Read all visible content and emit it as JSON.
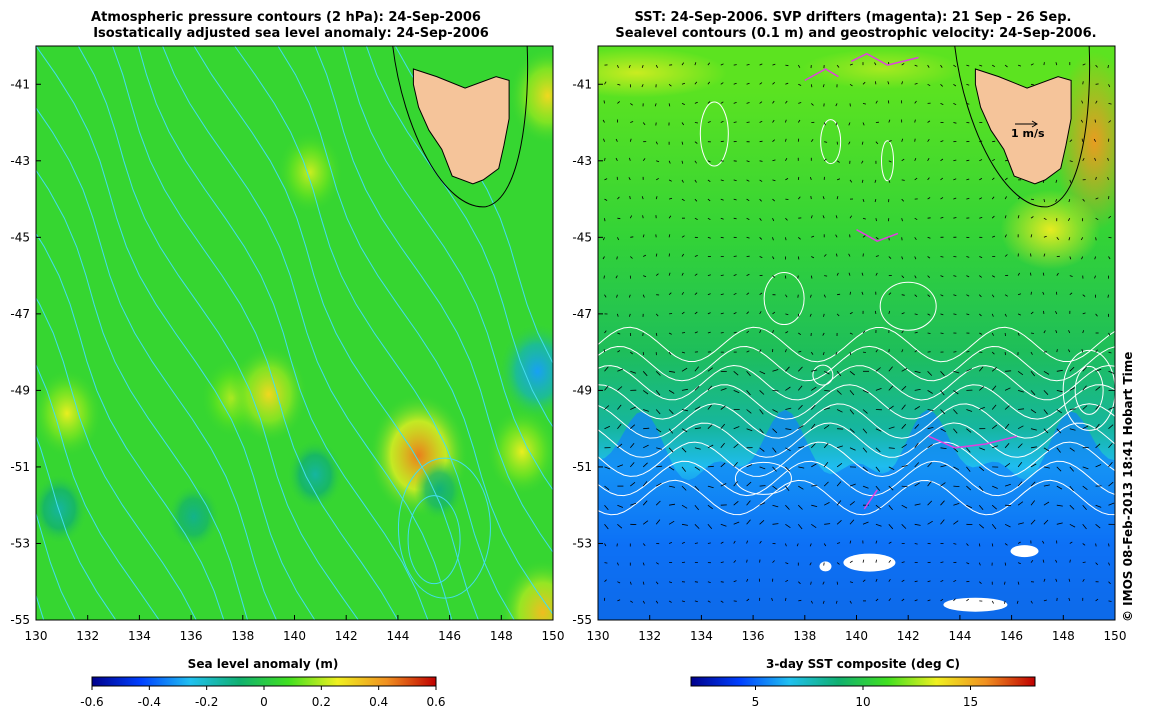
{
  "left_panel": {
    "title_line1": "Atmospheric pressure contours (2 hPa): 24-Sep-2006",
    "title_line2": "Isostatically adjusted sea level anomaly: 24-Sep-2006",
    "colorbar_label": "Sea level anomaly (m)",
    "colorbar_ticks": [
      "-0.6",
      "-0.4",
      "-0.2",
      "0",
      "0.2",
      "0.4",
      "0.6"
    ]
  },
  "right_panel": {
    "title_line1": "SST: 24-Sep-2006. SVP drifters (magenta): 21 Sep - 26 Sep.",
    "title_line2": "Sealevel contours (0.1 m) and geostrophic velocity: 24-Sep-2006.",
    "velocity_scale_label": "1 m/s",
    "colorbar_label": "3-day SST composite (deg C)",
    "colorbar_ticks": [
      "5",
      "10",
      "15"
    ]
  },
  "credit": "© IMOS 08-Feb-2013 18:41 Hobart Time",
  "chart_data": [
    {
      "type": "heatmap",
      "title": "Atmospheric pressure contours (2 hPa): 24-Sep-2006 / Isostatically adjusted sea level anomaly: 24-Sep-2006",
      "colorbar_label": "Sea level anomaly (m)",
      "xlim": [
        130,
        150
      ],
      "ylim": [
        -55,
        -40
      ],
      "x_ticks": [
        "130",
        "132",
        "134",
        "136",
        "138",
        "140",
        "142",
        "144",
        "146",
        "148",
        "150"
      ],
      "y_ticks": [
        "-41",
        "-43",
        "-45",
        "-47",
        "-49",
        "-51",
        "-53",
        "-55"
      ],
      "color_range": [
        -0.6,
        0.6
      ],
      "colorbar_colors": [
        "#00008c",
        "#0040ff",
        "#20c0f0",
        "#10b070",
        "#40e020",
        "#f0f020",
        "#f09020",
        "#c00000"
      ],
      "anomalies": [
        {
          "lon": 131.2,
          "lat": -49.6,
          "value": 0.25
        },
        {
          "lon": 130.9,
          "lat": -52.1,
          "value": -0.15
        },
        {
          "lon": 136.1,
          "lat": -52.3,
          "value": -0.12
        },
        {
          "lon": 137.6,
          "lat": -49.2,
          "value": 0.2
        },
        {
          "lon": 139.0,
          "lat": -49.1,
          "value": 0.3
        },
        {
          "lon": 140.6,
          "lat": -43.3,
          "value": 0.22
        },
        {
          "lon": 140.8,
          "lat": -51.2,
          "value": -0.15
        },
        {
          "lon": 144.8,
          "lat": -50.7,
          "value": 0.45
        },
        {
          "lon": 145.6,
          "lat": -51.6,
          "value": -0.1
        },
        {
          "lon": 149.4,
          "lat": -48.5,
          "value": -0.3
        },
        {
          "lon": 149.8,
          "lat": -41.3,
          "value": 0.3
        },
        {
          "lon": 149.6,
          "lat": -54.8,
          "value": 0.35
        },
        {
          "lon": 148.8,
          "lat": -50.6,
          "value": 0.25
        }
      ],
      "colors": {
        "land": "#f5c49a",
        "pressure_contours": "#44ddee"
      }
    },
    {
      "type": "heatmap",
      "title": "SST: 24-Sep-2006. SVP drifters (magenta): 21 Sep - 26 Sep. / Sealevel contours (0.1 m) and geostrophic velocity: 24-Sep-2006.",
      "colorbar_label": "3-day SST composite (deg C)",
      "xlim": [
        130,
        150
      ],
      "ylim": [
        -55,
        -40
      ],
      "x_ticks": [
        "130",
        "132",
        "134",
        "136",
        "138",
        "140",
        "142",
        "144",
        "146",
        "148",
        "150"
      ],
      "y_ticks": [
        "-41",
        "-43",
        "-45",
        "-47",
        "-49",
        "-51",
        "-53",
        "-55"
      ],
      "color_range": [
        2,
        18
      ],
      "colorbar_colors": [
        "#00008c",
        "#0040ff",
        "#20c0f0",
        "#10b070",
        "#40e020",
        "#f0f020",
        "#f09020",
        "#c00000"
      ],
      "sst_bands": [
        {
          "lat": -41,
          "sst": 11.5
        },
        {
          "lat": -45,
          "sst": 10.5
        },
        {
          "lat": -48,
          "sst": 9.5
        },
        {
          "lat": -50,
          "sst": 8
        },
        {
          "lat": -51,
          "sst": 6.5
        },
        {
          "lat": -53,
          "sst": 4
        },
        {
          "lat": -55,
          "sst": 3
        }
      ],
      "velocity_scale": "1 m/s",
      "colors": {
        "land": "#f5c49a",
        "sealevel_contours": "#ffffff",
        "drifters": "#e040e0",
        "velocity_arrows": "#000000"
      }
    }
  ]
}
